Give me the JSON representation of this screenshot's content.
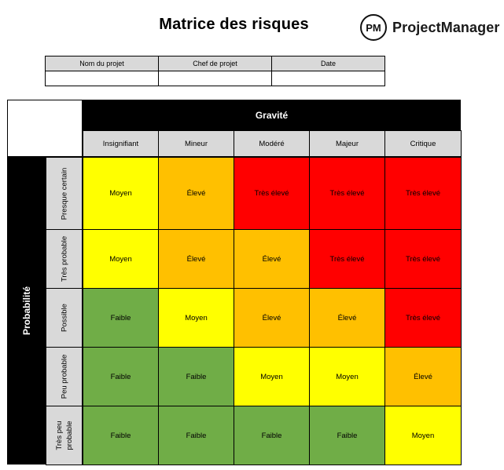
{
  "title": "Matrice des risques",
  "logo": {
    "mark": "PM",
    "text": "ProjectManager"
  },
  "project_info": {
    "headers": [
      "Nom du projet",
      "Chef de projet",
      "Date"
    ],
    "values": [
      "",
      "",
      ""
    ]
  },
  "matrix": {
    "severity_label": "Gravité",
    "probability_label": "Probabilité",
    "columns": [
      "Insignifiant",
      "Mineur",
      "Modéré",
      "Majeur",
      "Critique"
    ],
    "rows": [
      {
        "label": "Presque certain",
        "cells": [
          "Moyen",
          "Élevé",
          "Très élevé",
          "Très élevé",
          "Très élevé"
        ]
      },
      {
        "label": "Très probable",
        "cells": [
          "Moyen",
          "Élevé",
          "Élevé",
          "Très élevé",
          "Très élevé"
        ]
      },
      {
        "label": "Possible",
        "cells": [
          "Faible",
          "Moyen",
          "Élevé",
          "Élevé",
          "Très élevé"
        ]
      },
      {
        "label": "Peu probable",
        "cells": [
          "Faible",
          "Faible",
          "Moyen",
          "Moyen",
          "Élevé"
        ]
      },
      {
        "label": "Très peu\nprobable",
        "cells": [
          "Faible",
          "Faible",
          "Faible",
          "Faible",
          "Moyen"
        ]
      }
    ],
    "level_colors": {
      "Faible": "#70AD47",
      "Moyen": "#FFFF00",
      "Élevé": "#FFC000",
      "Très élevé": "#FF0000"
    }
  }
}
